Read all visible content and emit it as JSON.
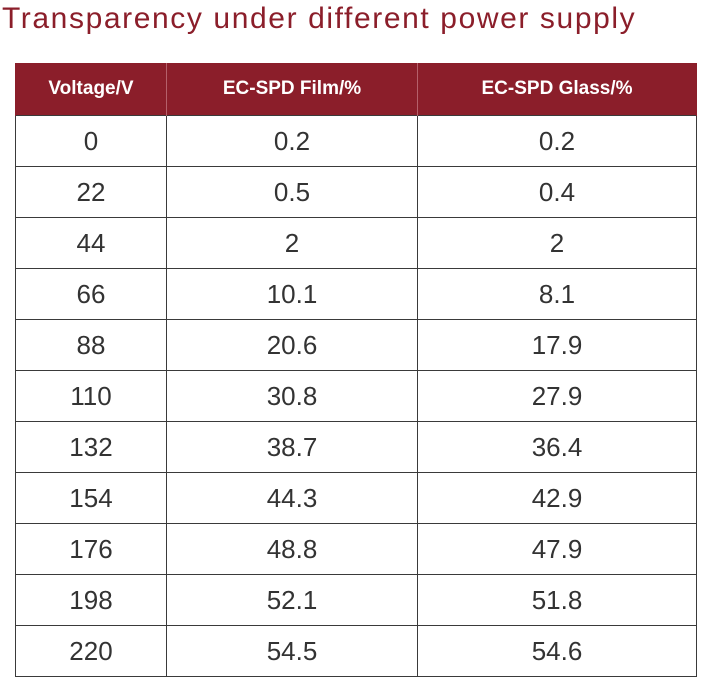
{
  "title": "Transparency under different power supply",
  "chart_data": {
    "type": "table",
    "title": "Transparency under different power supply",
    "columns": [
      "Voltage/V",
      "EC-SPD Film/%",
      "EC-SPD Glass/%"
    ],
    "rows": [
      [
        "0",
        "0.2",
        "0.2"
      ],
      [
        "22",
        "0.5",
        "0.4"
      ],
      [
        "44",
        "2",
        "2"
      ],
      [
        "66",
        "10.1",
        "8.1"
      ],
      [
        "88",
        "20.6",
        "17.9"
      ],
      [
        "110",
        "30.8",
        "27.9"
      ],
      [
        "132",
        "38.7",
        "36.4"
      ],
      [
        "154",
        "44.3",
        "42.9"
      ],
      [
        "176",
        "48.8",
        "47.9"
      ],
      [
        "198",
        "52.1",
        "51.8"
      ],
      [
        "220",
        "54.5",
        "54.6"
      ]
    ]
  },
  "colors": {
    "accent": "#8b1e2a",
    "header_text": "#ffffff",
    "cell_text": "#333333",
    "grid": "#3a3a3a"
  }
}
